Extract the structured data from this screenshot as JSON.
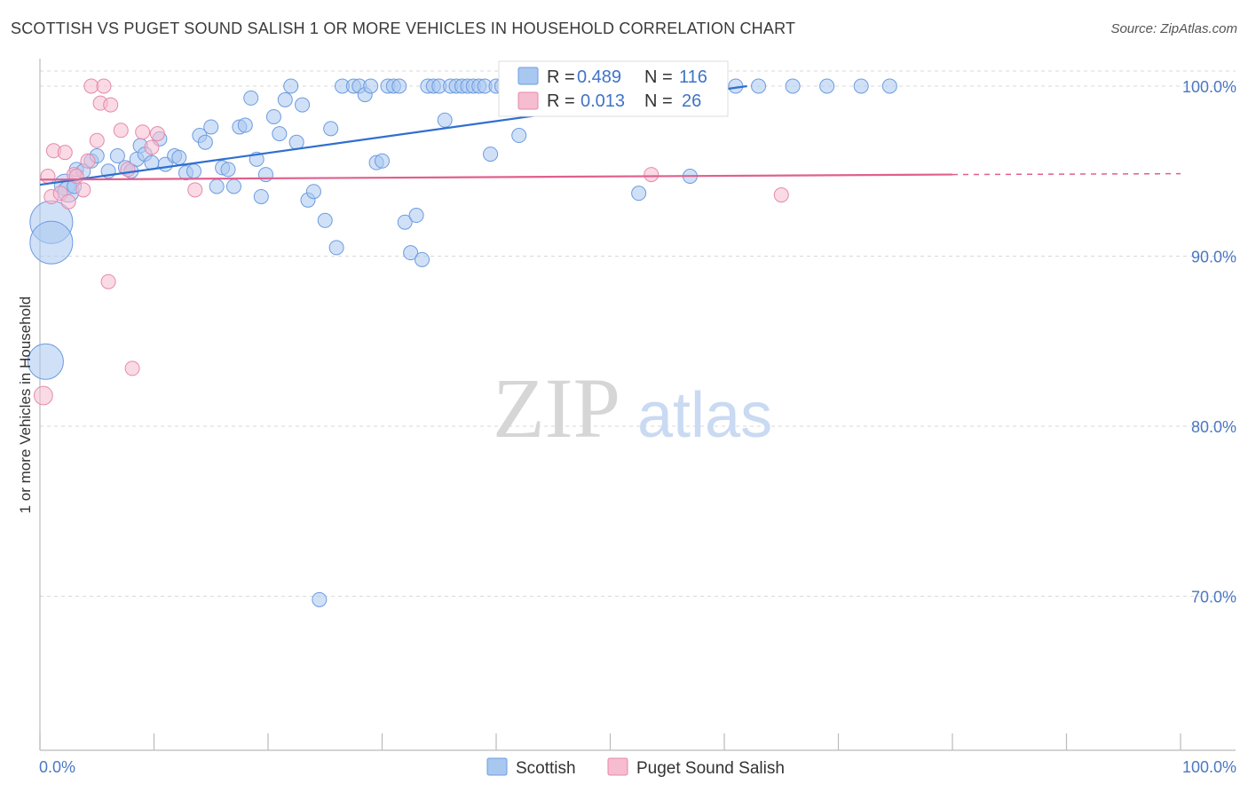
{
  "title": "SCOTTISH VS PUGET SOUND SALISH 1 OR MORE VEHICLES IN HOUSEHOLD CORRELATION CHART",
  "source": "Source: ZipAtlas.com",
  "watermark": {
    "zip": "ZIP",
    "atlas": "atlas"
  },
  "colors": {
    "scottish_fill": "#a9c8f0",
    "scottish_stroke": "#6d9be0",
    "scottish_line": "#2f6fd0",
    "salish_fill": "#f6bcd0",
    "salish_stroke": "#e58aab",
    "salish_line": "#e0608e",
    "axis_label": "#4a77c4",
    "grid": "#d9d9d9"
  },
  "legend": {
    "r_label": "R =",
    "n_label": "N =",
    "series": [
      {
        "name": "Scottish",
        "r": "0.489",
        "n": "116"
      },
      {
        "name": "Puget Sound Salish",
        "r": "0.013",
        "n": "26"
      }
    ]
  },
  "chart_data": {
    "type": "scatter",
    "title": "SCOTTISH VS PUGET SOUND SALISH 1 OR MORE VEHICLES IN HOUSEHOLD CORRELATION CHART",
    "xlabel": "",
    "ylabel": "1 or more Vehicles in Household",
    "xlim": [
      0,
      100
    ],
    "ylim": [
      60.5,
      102
    ],
    "x_ticks": [
      "0.0%",
      "100.0%"
    ],
    "y_ticks": [
      {
        "value": 100,
        "label": "100.0%"
      },
      {
        "value": 90,
        "label": "90.0%"
      },
      {
        "value": 80,
        "label": "80.0%"
      },
      {
        "value": 70,
        "label": "70.0%"
      }
    ],
    "series": [
      {
        "name": "Scottish",
        "trend": {
          "x": [
            0,
            62
          ],
          "y": [
            94.2,
            100
          ]
        },
        "points": [
          [
            1.0,
            92.0,
            3
          ],
          [
            1.0,
            90.8,
            3
          ],
          [
            0.5,
            83.8,
            2.5
          ],
          [
            2.2,
            94.2,
            1.5
          ],
          [
            2.5,
            93.8,
            1.5
          ],
          [
            3.0,
            94.1,
            1
          ],
          [
            3.2,
            95.1,
            1
          ],
          [
            3.8,
            95.0,
            1
          ],
          [
            4.5,
            95.6,
            1
          ],
          [
            5.0,
            95.9,
            1
          ],
          [
            6.0,
            95.0,
            1
          ],
          [
            6.8,
            95.9,
            1
          ],
          [
            7.5,
            95.2,
            1
          ],
          [
            8.0,
            95.0,
            1
          ],
          [
            8.5,
            95.7,
            1
          ],
          [
            8.8,
            96.5,
            1
          ],
          [
            9.2,
            96.0,
            1
          ],
          [
            9.8,
            95.5,
            1
          ],
          [
            10.5,
            96.9,
            1
          ],
          [
            11.0,
            95.4,
            1
          ],
          [
            11.8,
            95.9,
            1
          ],
          [
            12.2,
            95.8,
            1
          ],
          [
            12.8,
            94.9,
            1
          ],
          [
            13.5,
            95.0,
            1
          ],
          [
            14.0,
            97.1,
            1
          ],
          [
            14.5,
            96.7,
            1
          ],
          [
            15.0,
            97.6,
            1
          ],
          [
            15.5,
            94.1,
            1
          ],
          [
            16.0,
            95.2,
            1
          ],
          [
            16.5,
            95.1,
            1
          ],
          [
            17.0,
            94.1,
            1
          ],
          [
            17.5,
            97.6,
            1
          ],
          [
            18.0,
            97.7,
            1
          ],
          [
            18.5,
            99.3,
            1
          ],
          [
            19.0,
            95.7,
            1
          ],
          [
            19.4,
            93.5,
            1
          ],
          [
            19.8,
            94.8,
            1
          ],
          [
            20.5,
            98.2,
            1
          ],
          [
            21.0,
            97.2,
            1
          ],
          [
            21.5,
            99.2,
            1
          ],
          [
            22.0,
            100,
            1
          ],
          [
            22.5,
            96.7,
            1
          ],
          [
            23.0,
            98.9,
            1
          ],
          [
            23.5,
            93.3,
            1
          ],
          [
            24.0,
            93.8,
            1
          ],
          [
            24.5,
            69.8,
            1
          ],
          [
            25.0,
            92.1,
            1
          ],
          [
            25.5,
            97.5,
            1
          ],
          [
            26.0,
            90.5,
            1
          ],
          [
            26.5,
            100,
            1
          ],
          [
            27.5,
            100,
            1
          ],
          [
            28.0,
            100,
            1
          ],
          [
            28.5,
            99.5,
            1
          ],
          [
            29.0,
            100,
            1
          ],
          [
            29.5,
            95.5,
            1
          ],
          [
            30.0,
            95.6,
            1
          ],
          [
            30.5,
            100,
            1
          ],
          [
            31.0,
            100,
            1
          ],
          [
            31.5,
            100,
            1
          ],
          [
            32.0,
            92.0,
            1
          ],
          [
            32.5,
            90.2,
            1
          ],
          [
            33.0,
            92.4,
            1
          ],
          [
            33.5,
            89.8,
            1
          ],
          [
            34.0,
            100,
            1
          ],
          [
            34.5,
            100,
            1
          ],
          [
            35.0,
            100,
            1
          ],
          [
            35.5,
            98.0,
            1
          ],
          [
            36.0,
            100,
            1
          ],
          [
            36.5,
            100,
            1
          ],
          [
            37.0,
            100,
            1
          ],
          [
            37.5,
            100,
            1
          ],
          [
            38.0,
            100,
            1
          ],
          [
            38.5,
            100,
            1
          ],
          [
            39.0,
            100,
            1
          ],
          [
            39.5,
            96.0,
            1
          ],
          [
            40.0,
            100,
            1
          ],
          [
            40.5,
            100,
            1
          ],
          [
            41.0,
            100,
            1
          ],
          [
            41.5,
            100,
            1
          ],
          [
            42.0,
            97.1,
            1
          ],
          [
            42.5,
            100,
            1
          ],
          [
            43.0,
            100,
            1
          ],
          [
            43.5,
            100,
            1
          ],
          [
            44.0,
            100,
            1
          ],
          [
            44.5,
            100,
            1
          ],
          [
            45.0,
            100,
            1
          ],
          [
            45.5,
            100,
            1
          ],
          [
            46.0,
            100,
            1
          ],
          [
            46.5,
            100,
            1
          ],
          [
            47.0,
            100,
            1
          ],
          [
            47.5,
            100,
            1
          ],
          [
            48.0,
            100,
            1
          ],
          [
            48.5,
            100,
            1
          ],
          [
            49.0,
            100,
            1
          ],
          [
            49.5,
            100,
            1
          ],
          [
            50.0,
            100,
            1
          ],
          [
            50.5,
            100,
            1
          ],
          [
            51.0,
            100,
            1
          ],
          [
            51.5,
            100,
            1
          ],
          [
            52.0,
            100,
            1
          ],
          [
            52.5,
            93.7,
            1
          ],
          [
            53.5,
            100,
            1
          ],
          [
            54.5,
            100,
            1
          ],
          [
            55.5,
            100,
            1
          ],
          [
            56.5,
            100,
            1
          ],
          [
            57.0,
            94.7,
            1
          ],
          [
            58.0,
            100,
            1
          ],
          [
            59.0,
            100,
            1
          ],
          [
            61.0,
            100,
            1
          ],
          [
            63.0,
            100,
            1
          ],
          [
            66.0,
            100,
            1
          ],
          [
            69.0,
            100,
            1
          ],
          [
            72.0,
            100,
            1
          ],
          [
            74.5,
            100,
            1
          ]
        ]
      },
      {
        "name": "Puget Sound Salish",
        "trend": {
          "x": [
            0,
            80
          ],
          "y": [
            94.5,
            94.8
          ]
        },
        "trend_dashed": {
          "x": [
            80,
            100
          ],
          "y": [
            94.8,
            94.85
          ]
        },
        "points": [
          [
            0.3,
            81.8,
            1.3
          ],
          [
            0.7,
            94.7,
            1
          ],
          [
            1.0,
            93.5,
            1
          ],
          [
            1.2,
            96.2,
            1
          ],
          [
            1.8,
            93.7,
            1
          ],
          [
            2.2,
            96.1,
            1
          ],
          [
            2.5,
            93.2,
            1
          ],
          [
            3.0,
            94.8,
            1
          ],
          [
            3.2,
            94.7,
            1
          ],
          [
            3.8,
            93.9,
            1
          ],
          [
            4.2,
            95.6,
            1
          ],
          [
            4.5,
            100,
            1
          ],
          [
            5.0,
            96.8,
            1
          ],
          [
            5.3,
            99.0,
            1
          ],
          [
            5.6,
            100,
            1
          ],
          [
            6.0,
            88.5,
            1
          ],
          [
            6.2,
            98.9,
            1
          ],
          [
            7.1,
            97.4,
            1
          ],
          [
            7.7,
            95.1,
            1
          ],
          [
            8.1,
            83.4,
            1
          ],
          [
            9.0,
            97.3,
            1
          ],
          [
            10.3,
            97.2,
            1
          ],
          [
            13.6,
            93.9,
            1
          ],
          [
            53.6,
            94.8,
            1
          ],
          [
            65.0,
            93.6,
            1
          ],
          [
            9.8,
            96.4,
            1
          ]
        ]
      }
    ]
  },
  "bottom_legend": [
    "Scottish",
    "Puget Sound Salish"
  ]
}
